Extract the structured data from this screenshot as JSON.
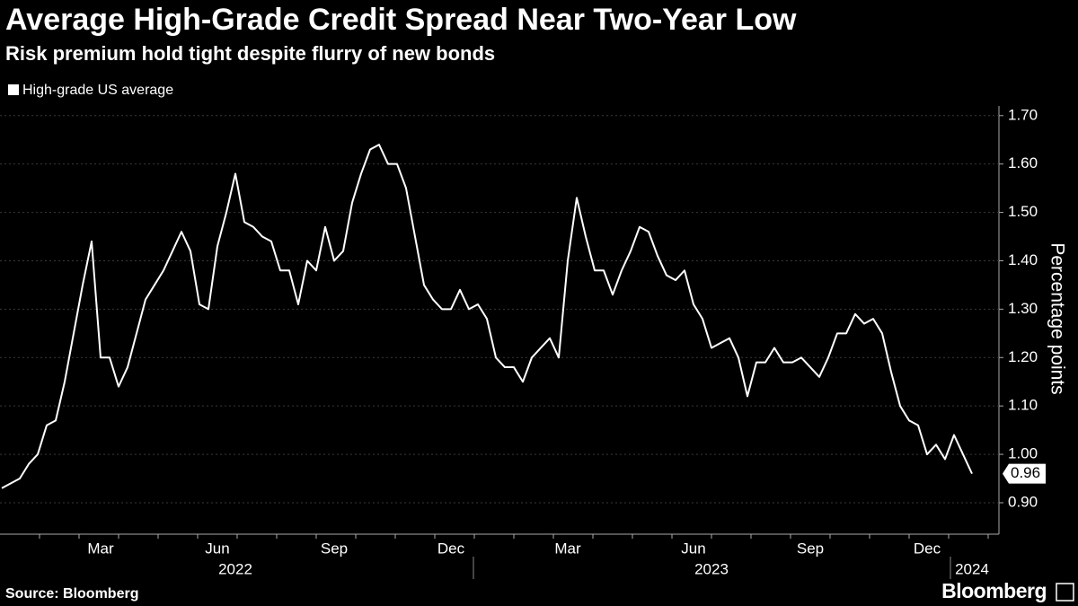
{
  "chart_data": {
    "type": "line",
    "title": "Average High-Grade Credit Spread Near Two-Year Low",
    "subtitle": "Risk premium hold tight despite flurry of new bonds",
    "y_label": "Percentage points",
    "source": "Source: Bloomberg",
    "logo": "Bloomberg",
    "categories": [
      null,
      null,
      null,
      null,
      null,
      null,
      null,
      null,
      null,
      null,
      null,
      "Mar",
      null,
      null,
      null,
      null,
      null,
      null,
      null,
      null,
      null,
      null,
      null,
      null,
      "Jun",
      null,
      null,
      null,
      null,
      null,
      null,
      null,
      null,
      null,
      null,
      null,
      null,
      "Sep",
      null,
      null,
      null,
      null,
      null,
      null,
      null,
      null,
      null,
      null,
      null,
      null,
      "Dec",
      null,
      null,
      null,
      null,
      null,
      null,
      null,
      null,
      null,
      null,
      null,
      null,
      "Mar",
      null,
      null,
      null,
      null,
      null,
      null,
      null,
      null,
      null,
      null,
      null,
      null,
      null,
      "Jun",
      null,
      null,
      null,
      null,
      null,
      null,
      null,
      null,
      null,
      null,
      null,
      null,
      "Sep",
      null,
      null,
      null,
      null,
      null,
      null,
      null,
      null,
      null,
      null,
      null,
      null,
      "Dec",
      null,
      null,
      null,
      null,
      null
    ],
    "years": [
      {
        "label": "2022",
        "index": 26
      },
      {
        "label": "2023",
        "index": 79
      },
      {
        "label": "2024",
        "index": 108
      }
    ],
    "series": [
      {
        "name": "High-grade US average",
        "color": "#ffffff",
        "values": [
          0.93,
          0.94,
          0.95,
          0.98,
          1.0,
          1.06,
          1.07,
          1.15,
          1.25,
          1.35,
          1.44,
          1.2,
          1.2,
          1.14,
          1.18,
          1.25,
          1.32,
          1.35,
          1.38,
          1.42,
          1.46,
          1.42,
          1.31,
          1.3,
          1.43,
          1.5,
          1.58,
          1.48,
          1.47,
          1.45,
          1.44,
          1.38,
          1.38,
          1.31,
          1.4,
          1.38,
          1.47,
          1.4,
          1.42,
          1.52,
          1.58,
          1.63,
          1.64,
          1.6,
          1.6,
          1.55,
          1.45,
          1.35,
          1.32,
          1.3,
          1.3,
          1.34,
          1.3,
          1.31,
          1.28,
          1.2,
          1.18,
          1.18,
          1.15,
          1.2,
          1.22,
          1.24,
          1.2,
          1.4,
          1.53,
          1.45,
          1.38,
          1.38,
          1.33,
          1.38,
          1.42,
          1.47,
          1.46,
          1.41,
          1.37,
          1.36,
          1.38,
          1.31,
          1.28,
          1.22,
          1.23,
          1.24,
          1.2,
          1.12,
          1.19,
          1.19,
          1.22,
          1.19,
          1.19,
          1.2,
          1.18,
          1.16,
          1.2,
          1.25,
          1.25,
          1.29,
          1.27,
          1.28,
          1.25,
          1.17,
          1.1,
          1.07,
          1.06,
          1.0,
          1.02,
          0.99,
          1.04,
          1.0,
          0.96
        ]
      }
    ],
    "ylim": [
      0.835,
      1.72
    ],
    "yticks": [
      {
        "value": 0.9,
        "label": "0.90"
      },
      {
        "value": 1.0,
        "label": "1.00"
      },
      {
        "value": 1.1,
        "label": "1.10"
      },
      {
        "value": 1.2,
        "label": "1.20"
      },
      {
        "value": 1.3,
        "label": "1.30"
      },
      {
        "value": 1.4,
        "label": "1.40"
      },
      {
        "value": 1.5,
        "label": "1.50"
      },
      {
        "value": 1.6,
        "label": "1.60"
      },
      {
        "value": 1.7,
        "label": "1.70"
      }
    ],
    "grid": true
  }
}
